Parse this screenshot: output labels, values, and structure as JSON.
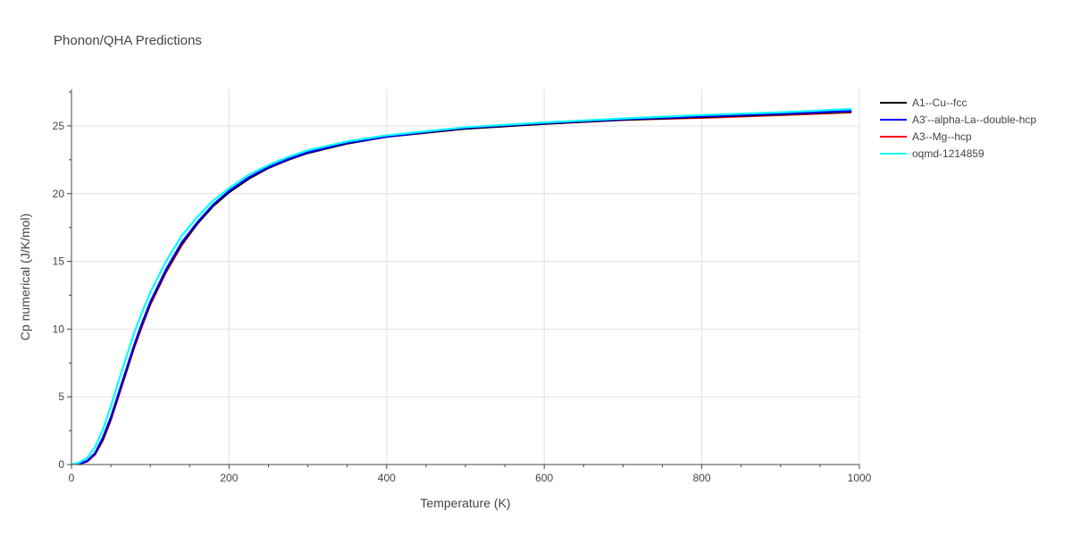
{
  "chart_data": {
    "type": "line",
    "title": "Phonon/QHA Predictions",
    "xlabel": "Temperature (K)",
    "ylabel": "Cp numerical (J/K/mol)",
    "xlim": [
      0,
      1000
    ],
    "ylim": [
      0,
      27.7
    ],
    "x_ticks": [
      0,
      200,
      400,
      600,
      800,
      1000
    ],
    "y_ticks": [
      0,
      5,
      10,
      15,
      20,
      25
    ],
    "grid": true,
    "legend_position": "top-right",
    "series": [
      {
        "name": "A1--Cu--fcc",
        "color": "#000000",
        "x": [
          0,
          10,
          20,
          30,
          40,
          50,
          60,
          70,
          80,
          90,
          100,
          120,
          140,
          160,
          180,
          200,
          225,
          250,
          275,
          300,
          350,
          400,
          450,
          500,
          600,
          700,
          800,
          900,
          990
        ],
        "y": [
          0,
          0.05,
          0.25,
          0.8,
          1.9,
          3.4,
          5.2,
          7.0,
          8.8,
          10.4,
          11.9,
          14.3,
          16.3,
          17.8,
          19.1,
          20.1,
          21.1,
          21.9,
          22.5,
          23.0,
          23.7,
          24.2,
          24.5,
          24.8,
          25.15,
          25.45,
          25.65,
          25.85,
          26.05
        ]
      },
      {
        "name": "A3'--alpha-La--double-hcp",
        "color": "#0000ff",
        "x": [
          0,
          10,
          20,
          30,
          40,
          50,
          60,
          70,
          80,
          90,
          100,
          120,
          140,
          160,
          180,
          200,
          225,
          250,
          275,
          300,
          350,
          400,
          450,
          500,
          600,
          700,
          800,
          900,
          990
        ],
        "y": [
          0,
          0.05,
          0.27,
          0.85,
          2.0,
          3.5,
          5.3,
          7.1,
          8.9,
          10.5,
          12.0,
          14.4,
          16.4,
          17.9,
          19.2,
          20.2,
          21.2,
          21.95,
          22.55,
          23.05,
          23.75,
          24.2,
          24.55,
          24.85,
          25.2,
          25.5,
          25.7,
          25.9,
          26.1
        ]
      },
      {
        "name": "A3--Mg--hcp",
        "color": "#ff0000",
        "x": [
          0,
          10,
          20,
          30,
          40,
          50,
          60,
          70,
          80,
          90,
          100,
          120,
          140,
          160,
          180,
          200,
          225,
          250,
          275,
          300,
          350,
          400,
          450,
          500,
          600,
          700,
          800,
          900,
          990
        ],
        "y": [
          0,
          0.04,
          0.22,
          0.75,
          1.8,
          3.3,
          5.1,
          6.9,
          8.7,
          10.3,
          11.8,
          14.2,
          16.2,
          17.8,
          19.1,
          20.1,
          21.1,
          21.9,
          22.5,
          23.0,
          23.7,
          24.2,
          24.5,
          24.8,
          25.15,
          25.45,
          25.6,
          25.8,
          26.0
        ]
      },
      {
        "name": "oqmd-1214859",
        "color": "#00ffff",
        "x": [
          0,
          10,
          20,
          30,
          40,
          50,
          60,
          70,
          80,
          90,
          100,
          120,
          140,
          160,
          180,
          200,
          225,
          250,
          275,
          300,
          350,
          400,
          450,
          500,
          600,
          700,
          800,
          900,
          990
        ],
        "y": [
          0,
          0.15,
          0.5,
          1.3,
          2.6,
          4.3,
          6.2,
          8.0,
          9.8,
          11.3,
          12.7,
          15.0,
          16.9,
          18.3,
          19.5,
          20.4,
          21.4,
          22.1,
          22.7,
          23.2,
          23.85,
          24.3,
          24.6,
          24.9,
          25.25,
          25.55,
          25.8,
          26.0,
          26.25
        ]
      }
    ]
  }
}
